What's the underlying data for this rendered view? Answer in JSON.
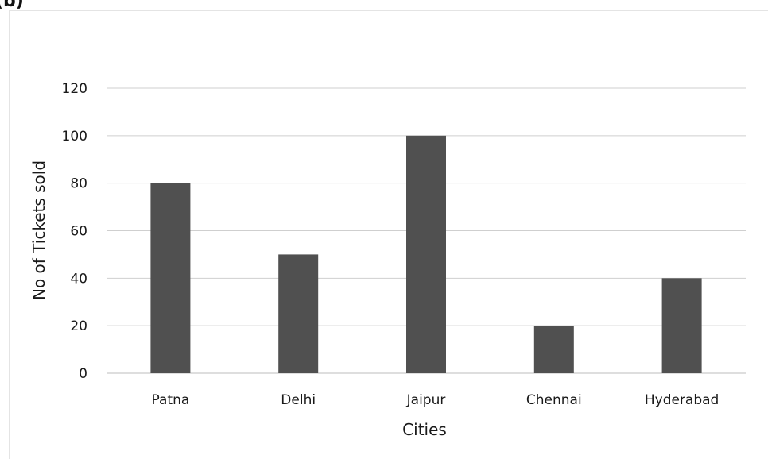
{
  "header_fragment": "(b)",
  "chart_data": {
    "type": "bar",
    "title": "",
    "xlabel": "Cities",
    "ylabel": "No of Tickets sold",
    "categories": [
      "Patna",
      "Delhi",
      "Jaipur",
      "Chennai",
      "Hyderabad"
    ],
    "values": [
      80,
      50,
      100,
      20,
      40
    ],
    "ylim": [
      0,
      120
    ],
    "yticks": [
      0,
      20,
      40,
      60,
      80,
      100,
      120
    ],
    "ytick_labels": [
      "0",
      "20",
      "40",
      "60",
      "80",
      "100",
      "120"
    ],
    "grid": true,
    "legend": "none",
    "bar_color": "#505050",
    "grid_color": "#cfcfcf"
  }
}
